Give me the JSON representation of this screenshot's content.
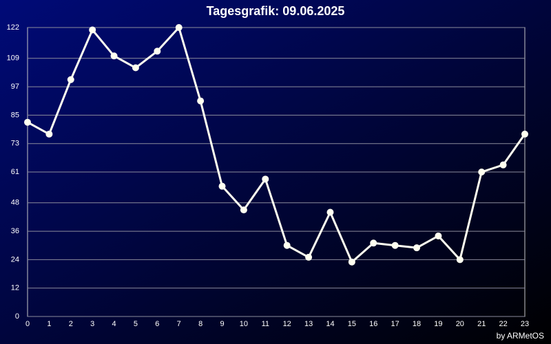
{
  "chart_data": {
    "type": "line",
    "title": "Tagesgrafik: 09.06.2025",
    "credit": "by ARMetOS",
    "x": [
      0,
      1,
      2,
      3,
      4,
      5,
      6,
      7,
      8,
      9,
      10,
      11,
      12,
      13,
      14,
      15,
      16,
      17,
      18,
      19,
      20,
      21,
      22,
      23
    ],
    "series": [
      {
        "color": "#fffff0",
        "values": [
          82,
          77,
          100,
          121,
          110,
          105,
          112,
          122,
          91,
          55,
          45,
          58,
          30,
          25,
          44,
          23,
          31,
          30,
          29,
          34,
          24,
          61,
          64,
          77
        ]
      }
    ],
    "xlim": [
      0,
      23
    ],
    "xticks": [
      0,
      1,
      2,
      3,
      4,
      5,
      6,
      7,
      8,
      9,
      10,
      11,
      12,
      13,
      14,
      15,
      16,
      17,
      18,
      19,
      20,
      21,
      22,
      23
    ],
    "ylim": [
      0,
      122
    ],
    "yticks": [
      0,
      12,
      24,
      36,
      48,
      61,
      73,
      85,
      97,
      109,
      122
    ],
    "grid": true
  }
}
